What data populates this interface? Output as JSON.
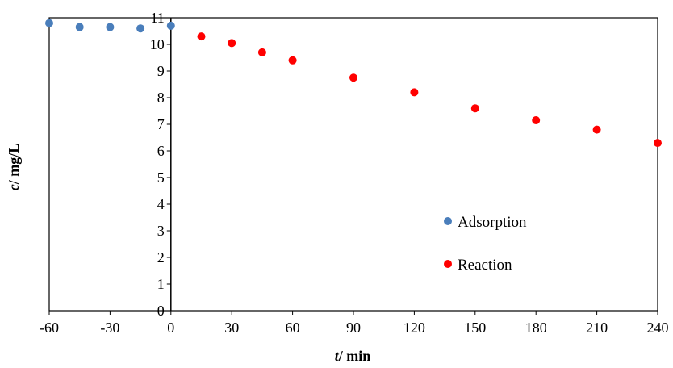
{
  "chart_data": {
    "type": "scatter",
    "xlabel_italic": "t",
    "xlabel_rest": "/ min",
    "ylabel_italic": "c",
    "ylabel_rest": "/ mg/L",
    "xlim": [
      -60,
      240
    ],
    "ylim": [
      0,
      11
    ],
    "x_ticks": [
      -60,
      -30,
      0,
      30,
      60,
      90,
      120,
      150,
      180,
      210,
      240
    ],
    "y_ticks": [
      0,
      1,
      2,
      3,
      4,
      5,
      6,
      7,
      8,
      9,
      10,
      11
    ],
    "grid": false,
    "legend_position": "center-right",
    "series": [
      {
        "name": "Adsorption",
        "color": "#4a7ebb",
        "points": [
          [
            -60,
            10.8
          ],
          [
            -45,
            10.65
          ],
          [
            -30,
            10.65
          ],
          [
            -15,
            10.6
          ],
          [
            0,
            10.7
          ]
        ]
      },
      {
        "name": "Reaction",
        "color": "#ff0000",
        "points": [
          [
            15,
            10.3
          ],
          [
            30,
            10.05
          ],
          [
            45,
            9.7
          ],
          [
            60,
            9.4
          ],
          [
            90,
            8.75
          ],
          [
            120,
            8.2
          ],
          [
            150,
            7.6
          ],
          [
            180,
            7.15
          ],
          [
            210,
            6.8
          ],
          [
            240,
            6.3
          ]
        ]
      }
    ]
  }
}
